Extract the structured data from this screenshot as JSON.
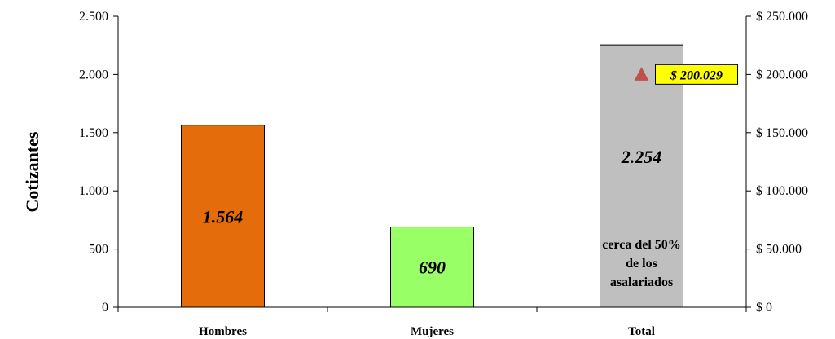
{
  "chart_data": {
    "type": "bar",
    "ylabel": "Cotizantes",
    "categories": [
      "Hombres",
      "Mujeres",
      "Total"
    ],
    "values": [
      1564,
      690,
      2254
    ],
    "value_labels": [
      "1.564",
      "690",
      "2.254"
    ],
    "colors": [
      "#e46c0a",
      "#99ff66",
      "#bfbfbf"
    ],
    "ylim": [
      0,
      2500
    ],
    "yticks": [
      0,
      500,
      1000,
      1500,
      2000,
      2500
    ],
    "ytick_labels": [
      "0",
      "500",
      "1.000",
      "1.500",
      "2.000",
      "2.500"
    ],
    "y2lim": [
      0,
      250000
    ],
    "y2ticks": [
      0,
      50000,
      100000,
      150000,
      200000,
      250000
    ],
    "y2tick_labels": [
      "$ 0",
      "$ 50.000",
      "$ 100.000",
      "$ 150.000",
      "$ 200.000",
      "$ 250.000"
    ],
    "secondary_point": {
      "category": "Total",
      "value": 200029,
      "label": "$ 200.029",
      "marker": "triangle",
      "marker_color": "#c0504d",
      "label_bg": "#ffff00"
    },
    "annotation": {
      "category": "Total",
      "lines": [
        "cerca del 50%",
        "de los",
        "asalariados"
      ]
    },
    "grid": false
  }
}
